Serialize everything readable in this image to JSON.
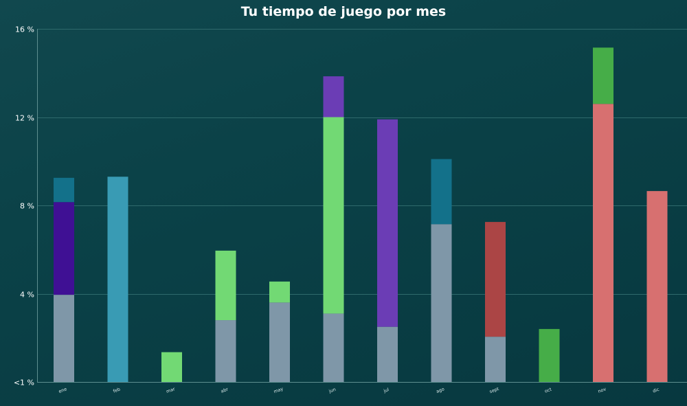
{
  "chart_data": {
    "type": "bar",
    "stacked": true,
    "title": "Tu tiempo de juego por mes",
    "xlabel": "",
    "ylabel": "",
    "ylim": [
      0,
      16
    ],
    "y_ticks": [
      {
        "value": 0,
        "label": "<1 %"
      },
      {
        "value": 4,
        "label": "4 %"
      },
      {
        "value": 8,
        "label": "8 %"
      },
      {
        "value": 12,
        "label": "12 %"
      },
      {
        "value": 16,
        "label": "16 %"
      }
    ],
    "grid": true,
    "legend": "none",
    "categories": [
      "ene",
      "feb",
      "mar",
      "abr",
      "may",
      "jun",
      "jul",
      "ago",
      "sept",
      "oct",
      "nov",
      "dic"
    ],
    "stacks": [
      [
        {
          "value": 3.95,
          "color": "#7f97a8"
        },
        {
          "value": 4.2,
          "color": "#3f1094"
        },
        {
          "value": 1.1,
          "color": "#13718a"
        }
      ],
      [
        {
          "value": 9.3,
          "color": "#399bb4"
        }
      ],
      [
        {
          "value": 1.35,
          "color": "#72d974"
        }
      ],
      [
        {
          "value": 2.8,
          "color": "#7f97a8"
        },
        {
          "value": 3.15,
          "color": "#72d974"
        }
      ],
      [
        {
          "value": 3.6,
          "color": "#7f97a8"
        },
        {
          "value": 0.95,
          "color": "#72d974"
        }
      ],
      [
        {
          "value": 3.1,
          "color": "#7f97a8"
        },
        {
          "value": 8.9,
          "color": "#72d974"
        },
        {
          "value": 1.85,
          "color": "#6b3db5"
        }
      ],
      [
        {
          "value": 2.5,
          "color": "#7f97a8"
        },
        {
          "value": 9.4,
          "color": "#6b3db5"
        }
      ],
      [
        {
          "value": 7.15,
          "color": "#7f97a8"
        },
        {
          "value": 2.95,
          "color": "#13718a"
        }
      ],
      [
        {
          "value": 2.05,
          "color": "#7f97a8"
        },
        {
          "value": 5.2,
          "color": "#ab4545"
        }
      ],
      [
        {
          "value": 2.4,
          "color": "#46ad48"
        }
      ],
      [
        {
          "value": 12.6,
          "color": "#d77070"
        },
        {
          "value": 2.55,
          "color": "#46ad48"
        }
      ],
      [
        {
          "value": 8.65,
          "color": "#d77070"
        }
      ]
    ]
  }
}
